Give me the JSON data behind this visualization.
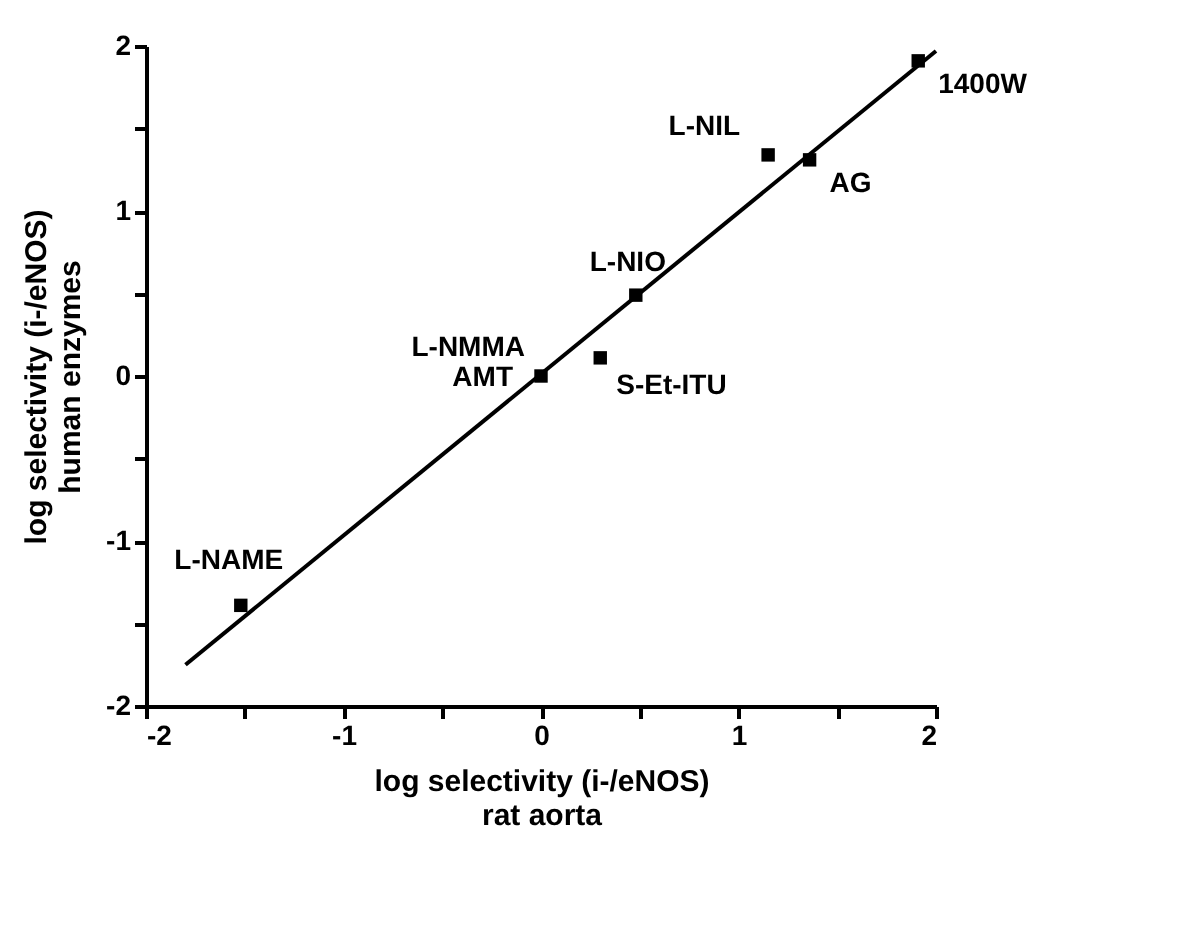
{
  "chart_data": {
    "type": "scatter",
    "xlabel": "log selectivity (i-/eNOS)\nrat aorta",
    "ylabel": "log selectivity (i-/eNOS)\nhuman enzymes",
    "series": [
      {
        "color": "#000000",
        "marker": "square",
        "x": [
          -1.52,
          0,
          0.3,
          0.48,
          1.15,
          1.36,
          1.91
        ],
        "values": [
          -1.39,
          0,
          0.11,
          0.49,
          1.34,
          1.31,
          1.91
        ]
      },
      {
        "type": "line",
        "color": "#000000",
        "line_style": "solid",
        "x": [
          -1.8,
          2.0
        ],
        "values": [
          -1.75,
          1.97
        ]
      }
    ],
    "annotations": [
      {
        "text": "L-NAME",
        "x": -1.52,
        "y": -1.39
      },
      {
        "text": "L-NMMA",
        "x": 0,
        "y": 0
      },
      {
        "text": "AMT",
        "x": 0,
        "y": 0
      },
      {
        "text": "S-Et-ITU",
        "x": 0.3,
        "y": 0.11
      },
      {
        "text": "L-NIO",
        "x": 0.48,
        "y": 0.49
      },
      {
        "text": "L-NIL",
        "x": 1.15,
        "y": 1.34
      },
      {
        "text": "AG",
        "x": 1.36,
        "y": 1.31
      },
      {
        "text": "1400W",
        "x": 1.91,
        "y": 1.91
      }
    ],
    "xlim": [
      -2,
      2
    ],
    "xticks": [
      -2,
      {
        "value": -1.5,
        "label": null
      },
      -1,
      {
        "value": -0.5,
        "label": null
      },
      0,
      {
        "value": 0.5,
        "label": null
      },
      1,
      {
        "value": 1.5,
        "label": null
      },
      2
    ],
    "ylim": [
      -2,
      2
    ],
    "yticks": [
      -2,
      {
        "value": -1.5,
        "label": null
      },
      -1,
      {
        "value": -0.5,
        "label": null
      },
      0,
      {
        "value": 0.5,
        "label": null
      },
      1,
      {
        "value": 1.5,
        "label": null
      },
      2
    ],
    "grid": false
  }
}
